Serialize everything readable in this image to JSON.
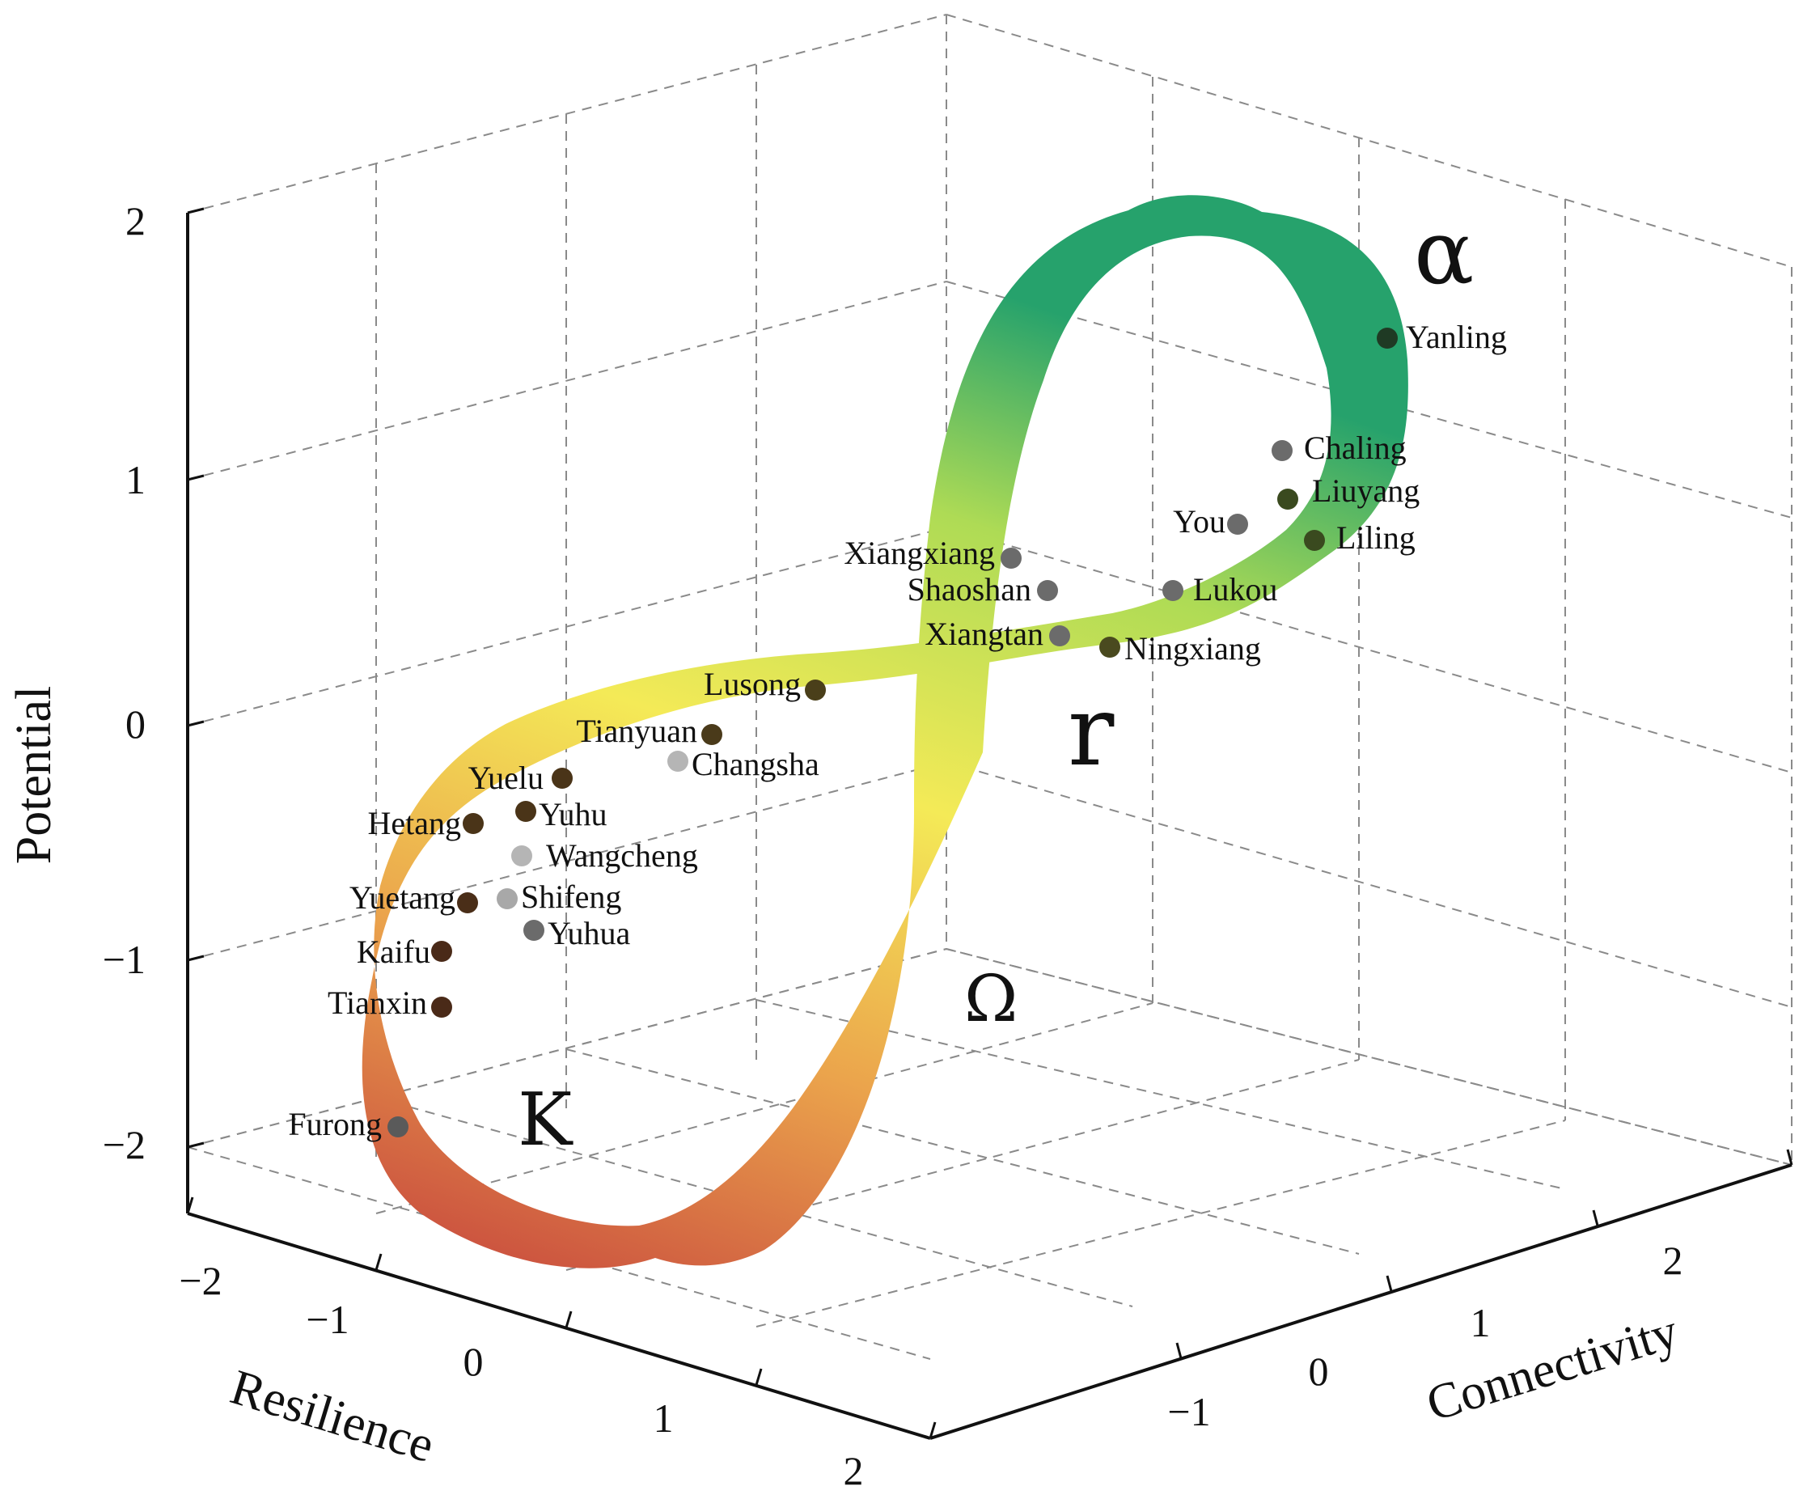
{
  "chart_data": {
    "type": "scatter",
    "title": "",
    "axes": {
      "x": {
        "label": "Resilience",
        "ticks": [
          "−2",
          "−1",
          "0",
          "1",
          "2"
        ]
      },
      "y": {
        "label": "Connectivity",
        "ticks": [
          "−1",
          "0",
          "1",
          "2"
        ]
      },
      "z": {
        "label": "Potential",
        "ticks": [
          "2",
          "1",
          "0",
          "−1",
          "−2"
        ]
      }
    },
    "phases": [
      {
        "symbol": "α",
        "color": "#2da56a"
      },
      {
        "symbol": "r",
        "color": "#f3ea55"
      },
      {
        "symbol": "Ω",
        "color": "#f0b04a"
      },
      {
        "symbol": "K",
        "color": "#c9483e"
      }
    ],
    "grid": true,
    "points": [
      {
        "name": "Yanling",
        "color": "#1f3a24"
      },
      {
        "name": "Chaling",
        "color": "#6b6b6b"
      },
      {
        "name": "Liuyang",
        "color": "#3a4a1f"
      },
      {
        "name": "You",
        "color": "#6b6b6b"
      },
      {
        "name": "Liling",
        "color": "#3a4a1f"
      },
      {
        "name": "Xiangxiang",
        "color": "#6b6b6b"
      },
      {
        "name": "Shaoshan",
        "color": "#6b6b6b"
      },
      {
        "name": "Lukou",
        "color": "#6b6b6b"
      },
      {
        "name": "Xiangtan",
        "color": "#6b6b6b"
      },
      {
        "name": "Ningxiang",
        "color": "#4a4a1f"
      },
      {
        "name": "Lusong",
        "color": "#4a3f1a"
      },
      {
        "name": "Tianyuan",
        "color": "#4a3a1a"
      },
      {
        "name": "Changsha",
        "color": "#b5b5b5"
      },
      {
        "name": "Yuelu",
        "color": "#4a3418"
      },
      {
        "name": "Yuhu",
        "color": "#4a3418"
      },
      {
        "name": "Hetang",
        "color": "#4a3418"
      },
      {
        "name": "Wangcheng",
        "color": "#b5b5b5"
      },
      {
        "name": "Yuetang",
        "color": "#4a2e18"
      },
      {
        "name": "Shifeng",
        "color": "#a8a8a8"
      },
      {
        "name": "Yuhua",
        "color": "#6b6b6b"
      },
      {
        "name": "Kaifu",
        "color": "#4a2a18"
      },
      {
        "name": "Tianxin",
        "color": "#4a2a18"
      },
      {
        "name": "Furong",
        "color": "#5a5a5a"
      }
    ]
  }
}
